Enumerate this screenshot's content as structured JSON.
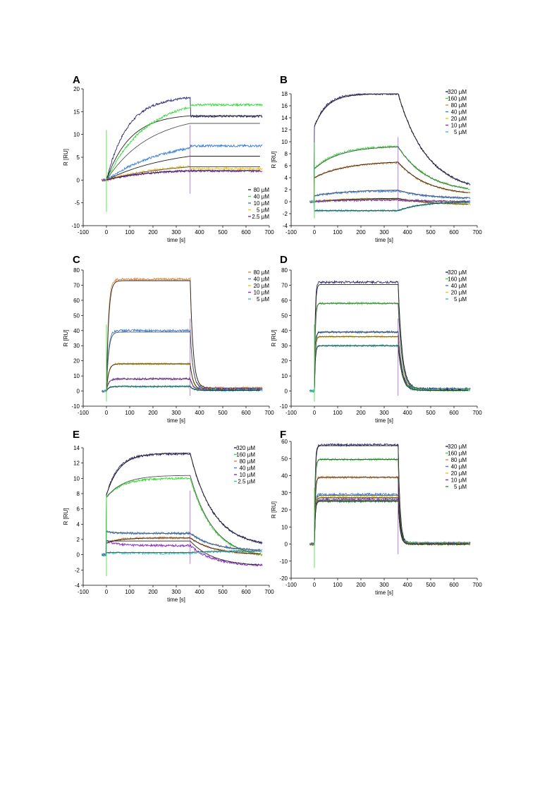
{
  "chart_data": [
    {
      "panel": "A",
      "type": "line",
      "xlabel": "time [s]",
      "ylabel": "R [RU]",
      "xlim": [
        -100,
        700
      ],
      "ylim": [
        -10,
        20
      ],
      "xticks": [
        -100,
        0,
        100,
        200,
        300,
        400,
        500,
        600,
        700
      ],
      "yticks": [
        -10,
        -5,
        0,
        5,
        10,
        15,
        20
      ],
      "grid": false,
      "legend_position": "bottom-right",
      "injection_end": 360,
      "series": [
        {
          "name": "80 µM",
          "color": "#2e2a78",
          "response_at_360": 18,
          "fit_plateau": 14.5,
          "dissociation_end": 14,
          "kon": 0.011,
          "koff": 0.0
        },
        {
          "name": "40 µM",
          "color": "#33dd33",
          "response_at_360": 16,
          "fit_plateau": 14.5,
          "dissociation_end": 16.5,
          "kon": 0.006,
          "koff": 0.0
        },
        {
          "name": "10 µM",
          "color": "#3b7fd6",
          "response_at_360": 7,
          "fit_plateau": 7.2,
          "dissociation_end": 7.5,
          "kon": 0.004,
          "koff": 0.0
        },
        {
          "name": "5 µM",
          "color": "#f0c419",
          "response_at_360": 3,
          "fit_plateau": 4,
          "dissociation_end": 2.5,
          "kon": 0.004,
          "koff": 0.0
        },
        {
          "name": "2.5 µM",
          "color": "#8b2bbf",
          "response_at_360": 2,
          "fit_plateau": 2.4,
          "dissociation_end": 2,
          "kon": 0.006,
          "koff": 0.0
        }
      ]
    },
    {
      "panel": "B",
      "type": "line",
      "xlabel": "time [s]",
      "ylabel": "R [RU]",
      "xlim": [
        -100,
        700
      ],
      "ylim": [
        -4,
        18
      ],
      "xticks": [
        -100,
        0,
        100,
        200,
        300,
        400,
        500,
        600,
        700
      ],
      "yticks": [
        -4,
        -2,
        0,
        2,
        4,
        6,
        8,
        10,
        12,
        14,
        16,
        18
      ],
      "grid": false,
      "legend_position": "top-right",
      "injection_end": 360,
      "series": [
        {
          "name": "320 µM",
          "color": "#2e2a78",
          "response_at_360": 18,
          "jump": 12.5,
          "fit_plateau": 18,
          "dissociation_end": 1.5,
          "kon": 0.02,
          "koff": 0.008
        },
        {
          "name": "160 µM",
          "color": "#33dd33",
          "response_at_360": 9.2,
          "jump": 5.5,
          "fit_plateau": 9.3,
          "dissociation_end": 1.5,
          "kon": 0.01,
          "koff": 0.008
        },
        {
          "name": "80 µM",
          "color": "#e08a3c",
          "response_at_360": 6.5,
          "jump": 4,
          "fit_plateau": 6.8,
          "dissociation_end": 1,
          "kon": 0.008,
          "koff": 0.008
        },
        {
          "name": "40 µM",
          "color": "#3b7fd6",
          "response_at_360": 1.8,
          "jump": 1,
          "fit_plateau": 2,
          "dissociation_end": 0.5,
          "kon": 0.008,
          "koff": 0.008
        },
        {
          "name": "20 µM",
          "color": "#f0c419",
          "response_at_360": 0.5,
          "jump": 0,
          "fit_plateau": 0.6,
          "dissociation_end": -0.5,
          "kon": 0.008,
          "koff": 0.008
        },
        {
          "name": "10 µM",
          "color": "#8b2bbf",
          "response_at_360": 0.3,
          "jump": 0,
          "fit_plateau": 0.4,
          "dissociation_end": 0,
          "kon": 0.008,
          "koff": 0.008
        },
        {
          "name": "5 µM",
          "color": "#2ec4c4",
          "response_at_360": -1.5,
          "jump": -1.5,
          "fit_plateau": -1.5,
          "dissociation_end": 0,
          "kon": 0.01,
          "koff": 0.01
        }
      ]
    },
    {
      "panel": "C",
      "type": "line",
      "xlabel": "time [s]",
      "ylabel": "R [RU]",
      "xlim": [
        -100,
        700
      ],
      "ylim": [
        -10,
        80
      ],
      "xticks": [
        -100,
        0,
        100,
        200,
        300,
        400,
        500,
        600,
        700
      ],
      "yticks": [
        -10,
        0,
        10,
        20,
        30,
        40,
        50,
        60,
        70,
        80
      ],
      "grid": false,
      "legend_position": "top-right",
      "injection_end": 360,
      "series": [
        {
          "name": "80 µM",
          "color": "#e08a3c",
          "response_at_360": 74,
          "fit_plateau": 73,
          "dissociation_end": 2,
          "kon": 0.12,
          "koff": 0.08
        },
        {
          "name": "40 µM",
          "color": "#3b7fd6",
          "response_at_360": 40,
          "fit_plateau": 39,
          "dissociation_end": 1.5,
          "kon": 0.12,
          "koff": 0.08
        },
        {
          "name": "20 µM",
          "color": "#f0c419",
          "response_at_360": 18,
          "fit_plateau": 18,
          "dissociation_end": 1,
          "kon": 0.12,
          "koff": 0.08
        },
        {
          "name": "10 µM",
          "color": "#8b2bbf",
          "response_at_360": 8,
          "fit_plateau": 8,
          "dissociation_end": 1,
          "kon": 0.12,
          "koff": 0.08
        },
        {
          "name": "5 µM",
          "color": "#2ec4c4",
          "response_at_360": 3,
          "fit_plateau": 3,
          "dissociation_end": 0.5,
          "kon": 0.12,
          "koff": 0.08
        }
      ]
    },
    {
      "panel": "D",
      "type": "line",
      "xlabel": "time [s]",
      "ylabel": "R [RU]",
      "xlim": [
        -100,
        700
      ],
      "ylim": [
        -10,
        80
      ],
      "xticks": [
        -100,
        0,
        100,
        200,
        300,
        400,
        500,
        600,
        700
      ],
      "yticks": [
        -10,
        0,
        10,
        20,
        30,
        40,
        50,
        60,
        70,
        80
      ],
      "grid": false,
      "legend_position": "top-right",
      "injection_end": 360,
      "series": [
        {
          "name": "320 µM",
          "color": "#2e2a78",
          "response_at_360": 72,
          "fit_plateau": 70.5,
          "dissociation_end": 1.5,
          "kon": 0.3,
          "koff": 0.06
        },
        {
          "name": "160 µM",
          "color": "#33dd33",
          "response_at_360": 58,
          "fit_plateau": 58,
          "dissociation_end": 1,
          "kon": 0.3,
          "koff": 0.06
        },
        {
          "name": "40 µM",
          "color": "#3b7fd6",
          "response_at_360": 39,
          "fit_plateau": 39,
          "dissociation_end": 1,
          "kon": 0.3,
          "koff": 0.06
        },
        {
          "name": "20 µM",
          "color": "#f0c419",
          "response_at_360": 36,
          "fit_plateau": 36,
          "dissociation_end": 0.5,
          "kon": 0.3,
          "koff": 0.06
        },
        {
          "name": "5 µM",
          "color": "#2ec4c4",
          "response_at_360": 30,
          "fit_plateau": 30,
          "dissociation_end": 0.5,
          "kon": 0.3,
          "koff": 0.06
        }
      ]
    },
    {
      "panel": "E",
      "type": "line",
      "xlabel": "time [s]",
      "ylabel": "R [RU]",
      "xlim": [
        -100,
        700
      ],
      "ylim": [
        -4,
        14
      ],
      "xticks": [
        -100,
        0,
        100,
        200,
        300,
        400,
        500,
        600,
        700
      ],
      "yticks": [
        -4,
        -2,
        0,
        2,
        4,
        6,
        8,
        10,
        12,
        14
      ],
      "grid": false,
      "legend_position": "top-right",
      "injection_end": 360,
      "series": [
        {
          "name": "320 µM",
          "color": "#2e2a78",
          "response_at_360": 13.2,
          "jump": 7.8,
          "fit_plateau": 13.3,
          "dissociation_end": 1,
          "kon": 0.02,
          "koff": 0.01
        },
        {
          "name": "160 µM",
          "color": "#33dd33",
          "response_at_360": 10,
          "jump": 7.5,
          "fit_plateau": 10.4,
          "dissociation_end": -0.5,
          "kon": 0.015,
          "koff": 0.01
        },
        {
          "name": "80 µM",
          "color": "#e08a3c",
          "response_at_360": 2.2,
          "jump": 1.5,
          "fit_plateau": 2.2,
          "dissociation_end": 0,
          "kon": 0.02,
          "koff": 0.01
        },
        {
          "name": "40 µM",
          "color": "#3b7fd6",
          "response_at_360": 2.8,
          "jump": 3,
          "fit_plateau": 2.8,
          "dissociation_end": 0.5,
          "kon": 0.02,
          "koff": 0.01
        },
        {
          "name": "10 µM",
          "color": "#8b2bbf",
          "response_at_360": 1.2,
          "jump": 1.8,
          "fit_plateau": 1.8,
          "dissociation_end": -1.5,
          "kon": 0.02,
          "koff": 0.01
        },
        {
          "name": "2.5 µM",
          "color": "#2ec4c4",
          "response_at_360": 0.2,
          "jump": 0.3,
          "fit_plateau": 0.3,
          "dissociation_end": 0.5,
          "kon": 0.02,
          "koff": 0.01
        }
      ]
    },
    {
      "panel": "F",
      "type": "line",
      "xlabel": "time [s]",
      "ylabel": "R [RU]",
      "xlim": [
        -100,
        700
      ],
      "ylim": [
        -20,
        60
      ],
      "xticks": [
        -100,
        0,
        100,
        200,
        300,
        400,
        500,
        600,
        700
      ],
      "yticks": [
        -20,
        -10,
        0,
        10,
        20,
        30,
        40,
        50,
        60
      ],
      "grid": false,
      "legend_position": "top-right",
      "injection_end": 360,
      "series": [
        {
          "name": "320 µM",
          "color": "#2e2a78",
          "response_at_360": 58,
          "fit_plateau": 57.5,
          "dissociation_end": 0.5,
          "kon": 0.3,
          "koff": 0.12
        },
        {
          "name": "160 µM",
          "color": "#33dd33",
          "response_at_360": 49.5,
          "fit_plateau": 49.5,
          "dissociation_end": 0.5,
          "kon": 0.3,
          "koff": 0.12
        },
        {
          "name": "80 µM",
          "color": "#e08a3c",
          "response_at_360": 39,
          "fit_plateau": 39,
          "dissociation_end": 0.5,
          "kon": 0.3,
          "koff": 0.12
        },
        {
          "name": "40 µM",
          "color": "#3b7fd6",
          "response_at_360": 29,
          "fit_plateau": 28.5,
          "dissociation_end": 0.5,
          "kon": 0.3,
          "koff": 0.12
        },
        {
          "name": "20 µM",
          "color": "#f0c419",
          "response_at_360": 27.5,
          "fit_plateau": 27,
          "dissociation_end": 0,
          "kon": 0.3,
          "koff": 0.12
        },
        {
          "name": "10 µM",
          "color": "#8b2bbf",
          "response_at_360": 26,
          "fit_plateau": 25.5,
          "dissociation_end": 0,
          "kon": 0.3,
          "koff": 0.12
        },
        {
          "name": "5 µM",
          "color": "#2ca02c",
          "response_at_360": 25,
          "fit_plateau": 25,
          "dissociation_end": 0,
          "kon": 0.3,
          "koff": 0.12
        }
      ]
    }
  ]
}
